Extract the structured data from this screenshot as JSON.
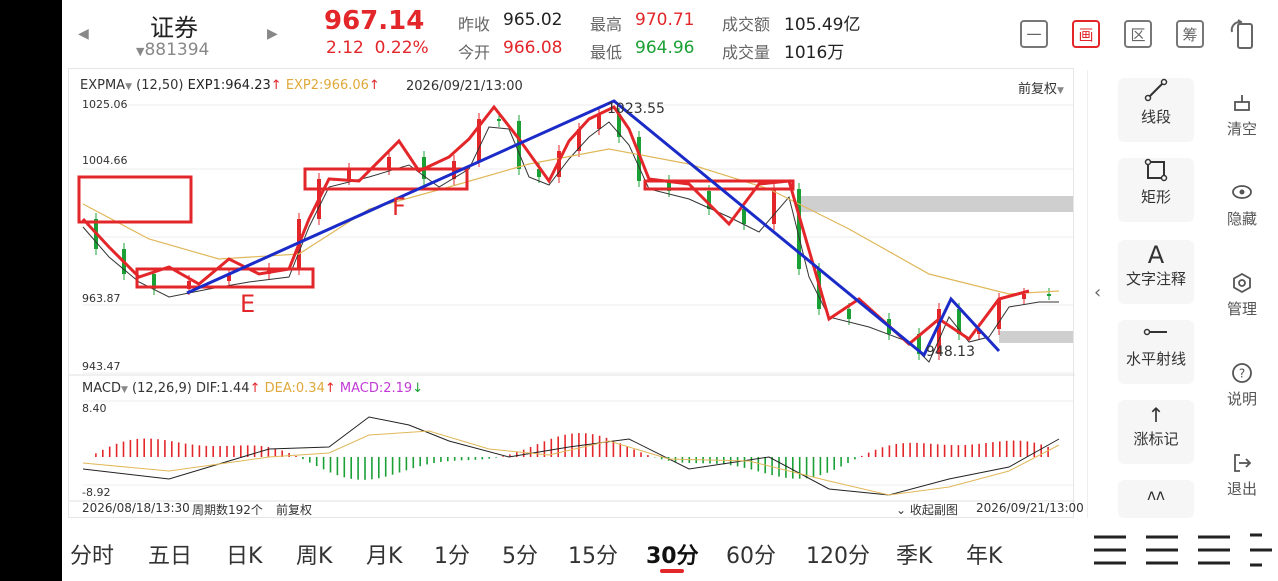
{
  "header": {
    "stock_name": "证券",
    "stock_code": "881394",
    "price": "967.14",
    "change": "2.12",
    "change_pct": "0.22%",
    "prev_close_label": "昨收",
    "prev_close": "965.02",
    "open_label": "今开",
    "open": "966.08",
    "high_label": "最高",
    "high": "970.71",
    "low_label": "最低",
    "low": "964.96",
    "amount_label": "成交额",
    "amount": "105.49亿",
    "volume_label": "成交量",
    "volume": "1016万",
    "top_buttons": [
      "一",
      "画",
      "区",
      "筹"
    ]
  },
  "main_chart": {
    "indicator": "EXPMA",
    "params": "(12,50)",
    "exp1_label": "EXP1:964.23",
    "exp2_label": "EXP2:966.06",
    "datetime": "2026/09/21/13:00",
    "adjust": "前复权",
    "y_labels": [
      "1025.06",
      "1004.66",
      "963.87",
      "943.47"
    ],
    "high_annotation": "1023.55",
    "low_annotation": "948.13",
    "markers": [
      "E",
      "F"
    ]
  },
  "macd": {
    "indicator": "MACD",
    "params": "(12,26,9)",
    "dif_label": "DIF:1.44",
    "dea_label": "DEA:0.34",
    "macd_label": "MACD:2.19",
    "y_top": "8.40",
    "y_bottom": "-8.92"
  },
  "footer_bar": {
    "start_time": "2026/08/18/13:30",
    "period_count": "周期数192个",
    "adjust": "前复权",
    "collapse": "收起副图",
    "end_time": "2026/09/21/13:00"
  },
  "tools": [
    "线段",
    "矩形",
    "文字注释",
    "水平射线",
    "涨标记"
  ],
  "side_actions": [
    "清空",
    "隐藏",
    "管理",
    "说明",
    "退出"
  ],
  "timeframes": [
    "分时",
    "五日",
    "日K",
    "周K",
    "月K",
    "1分",
    "5分",
    "15分",
    "30分",
    "60分",
    "120分",
    "季K",
    "年K"
  ],
  "active_timeframe": "30分",
  "colors": {
    "up": "#e3262a",
    "down": "#1aa035",
    "draw_blue": "#1b2bc8",
    "exp2": "#e0b85a"
  }
}
